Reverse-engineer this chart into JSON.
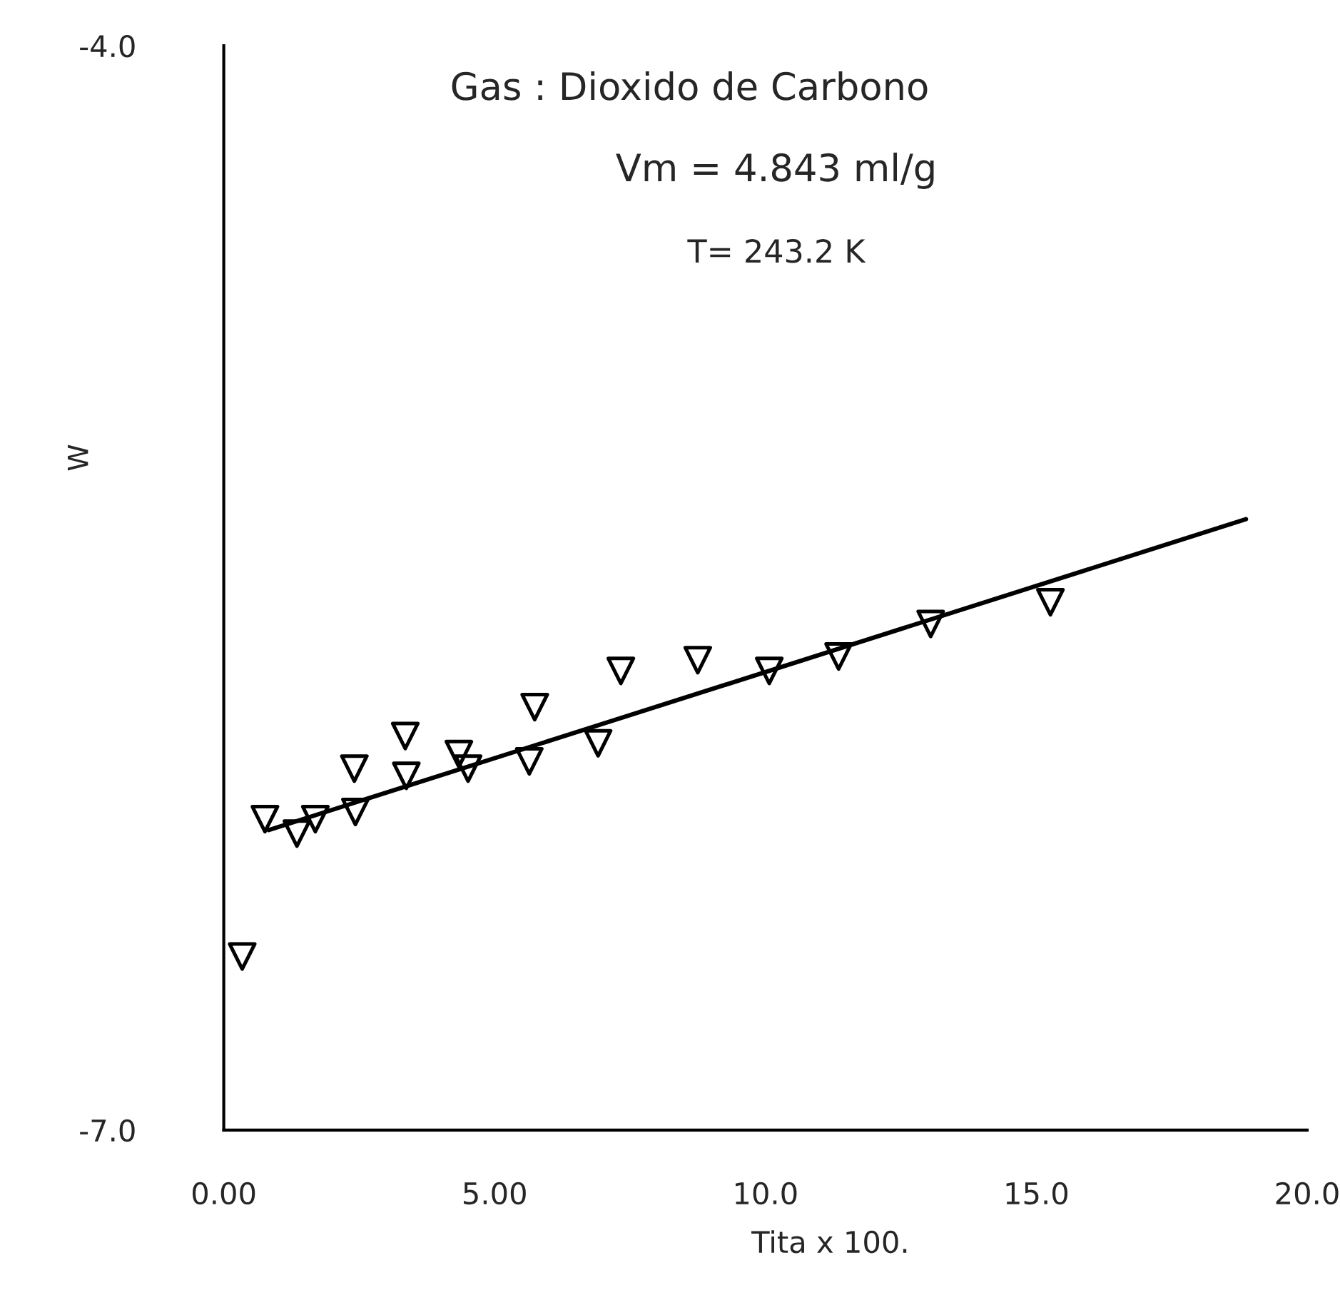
{
  "chart_data": {
    "type": "scatter",
    "title": "Gas : Dioxido de Carbono",
    "subtitle": "Vm = 4.843 ml/g",
    "annotations": [
      "T= 243.2 K"
    ],
    "xlabel": "Tita x 100.",
    "ylabel": "W",
    "series": [
      {
        "color": "#000000",
        "marker": "triangle",
        "x": [
          0.34,
          0.76,
          1.35,
          1.69,
          2.41,
          2.43,
          3.35,
          3.37,
          4.34,
          4.51,
          5.64,
          5.74,
          6.91,
          7.33,
          8.75,
          10.07,
          11.35,
          13.05,
          15.26
        ],
        "values": [
          -6.52,
          -6.14,
          -6.18,
          -6.14,
          -6.0,
          -6.12,
          -5.91,
          -6.02,
          -5.96,
          -6.0,
          -5.98,
          -5.83,
          -5.93,
          -5.73,
          -5.7,
          -5.73,
          -5.69,
          -5.6,
          -5.54
        ]
      },
      {
        "type": "line",
        "color": "#000000",
        "line_style": "solid",
        "x": [
          0.83,
          18.87
        ],
        "values": [
          -6.17,
          -5.31
        ]
      }
    ],
    "xlim": [
      0,
      20
    ],
    "ylim": [
      -7.0,
      -4.0
    ],
    "xticks": [
      {
        "value": 0,
        "label": "0.00"
      },
      {
        "value": 5,
        "label": "5.00"
      },
      {
        "value": 10,
        "label": "10.0"
      },
      {
        "value": 15,
        "label": "15.0"
      },
      {
        "value": 20,
        "label": "20.0"
      }
    ],
    "yticks": [
      {
        "value": -7.0,
        "label": "-7.0"
      },
      {
        "value": -4.0,
        "label": "-4.0"
      }
    ],
    "grid": false,
    "legend": false
  }
}
